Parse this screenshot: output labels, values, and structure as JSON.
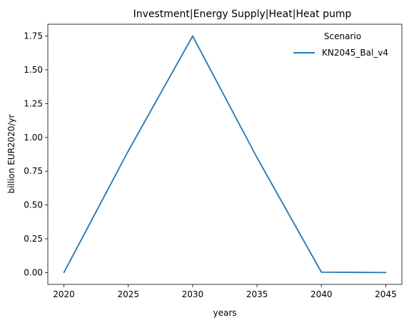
{
  "chart_data": {
    "type": "line",
    "title": "Investment|Energy Supply|Heat|Heat pump",
    "xlabel": "years",
    "ylabel": "billion EUR2020/yr",
    "x": [
      2020,
      2025,
      2030,
      2035,
      2040,
      2045
    ],
    "series": [
      {
        "name": "KN2045_Bal_v4",
        "color": "#1f77b4",
        "values": [
          0.0,
          0.9,
          1.75,
          0.85,
          0.003,
          0.0
        ]
      }
    ],
    "xlim": [
      2018.75,
      2046.25
    ],
    "ylim": [
      -0.0875,
      1.8375
    ],
    "xticks": [
      2020,
      2025,
      2030,
      2035,
      2040,
      2045
    ],
    "yticks": [
      0.0,
      0.25,
      0.5,
      0.75,
      1.0,
      1.25,
      1.5,
      1.75
    ],
    "ytick_labels": [
      "0.00",
      "0.25",
      "0.50",
      "0.75",
      "1.00",
      "1.25",
      "1.50",
      "1.75"
    ],
    "legend": {
      "title": "Scenario",
      "position": "top-right"
    },
    "grid": false
  }
}
